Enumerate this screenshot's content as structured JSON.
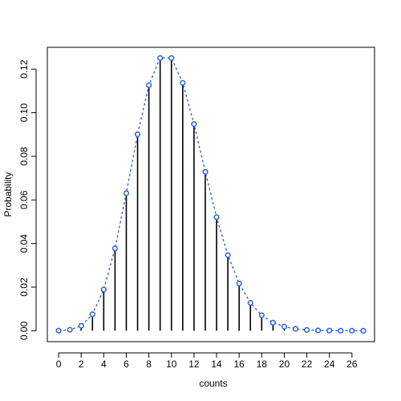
{
  "chart_data": {
    "type": "line",
    "title": "",
    "xlabel": "counts",
    "ylabel": "Probability",
    "xlim": [
      -1,
      28
    ],
    "ylim": [
      -0.005,
      0.13
    ],
    "xticks": [
      0,
      2,
      4,
      6,
      8,
      10,
      12,
      14,
      16,
      18,
      20,
      22,
      24,
      26
    ],
    "xtick_labels": [
      "0",
      "2",
      "4",
      "6",
      "8",
      "10",
      "12",
      "14",
      "16",
      "18",
      "20",
      "22",
      "24",
      "26"
    ],
    "yticks": [
      0,
      0.02,
      0.04,
      0.06,
      0.08,
      0.1,
      0.12
    ],
    "ytick_labels": [
      "0.00",
      "0.02",
      "0.04",
      "0.06",
      "0.08",
      "0.10",
      "0.12"
    ],
    "grid": false,
    "legend": "none",
    "x": [
      0,
      1,
      2,
      3,
      4,
      5,
      6,
      7,
      8,
      9,
      10,
      11,
      12,
      13,
      14,
      15,
      16,
      17,
      18,
      19,
      20,
      21,
      22,
      23,
      24,
      25,
      26,
      27
    ],
    "series": [
      {
        "style": "vertical lines (histogram-type) with dashed line and open circles",
        "values": [
          4.54e-05,
          0.000454,
          0.00227,
          0.00757,
          0.0189,
          0.0378,
          0.0631,
          0.0901,
          0.1126,
          0.1251,
          0.1251,
          0.1137,
          0.0948,
          0.0729,
          0.0521,
          0.0347,
          0.0217,
          0.0128,
          0.0071,
          0.0037,
          0.0019,
          0.00089,
          0.0004,
          0.00018,
          7.5e-05,
          3e-05,
          1.2e-05,
          4.3e-06
        ]
      }
    ],
    "colors": {
      "spikes": "#000000",
      "line": "#3366dd",
      "points": "#3366dd"
    }
  }
}
